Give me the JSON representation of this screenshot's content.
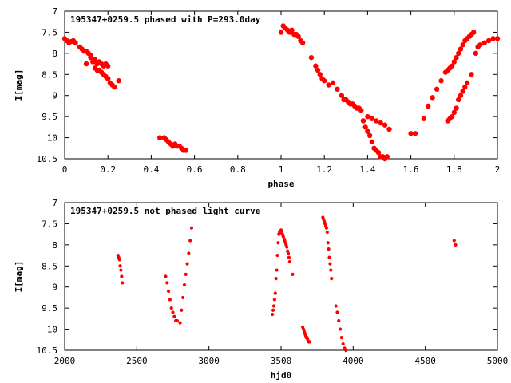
{
  "chart_data": [
    {
      "type": "scatter",
      "title": "195347+0259.5 phased with P=293.0day",
      "xlabel": "phase",
      "ylabel": "I[mag]",
      "xlim": [
        0,
        2
      ],
      "ylim": [
        7,
        10.5
      ],
      "y_inverted": true,
      "grid": false,
      "xticks": [
        0,
        0.2,
        0.4,
        0.6,
        0.8,
        1,
        1.2,
        1.4,
        1.6,
        1.8,
        2
      ],
      "xtick_labels": [
        "0",
        "0.2",
        "0.4",
        "0.6",
        "0.8",
        "1",
        "1.2",
        "1.4",
        "1.6",
        "1.8",
        "2"
      ],
      "yticks": [
        7,
        7.5,
        8,
        8.5,
        9,
        9.5,
        10,
        10.5
      ],
      "ytick_labels": [
        "7",
        "7.5",
        "8",
        "8.5",
        "9",
        "9.5",
        "10",
        "10.5"
      ],
      "marker_color": "#ff0000",
      "series": [
        {
          "x": [
            0.0,
            0.01,
            0.02,
            0.03,
            0.04,
            0.05,
            0.07,
            0.08,
            0.09,
            0.1,
            0.11,
            0.12,
            0.12,
            0.13,
            0.14,
            0.15,
            0.16,
            0.17,
            0.18,
            0.19,
            0.2,
            0.14,
            0.15,
            0.16,
            0.17,
            0.18,
            0.19,
            0.2,
            0.21,
            0.22,
            0.23,
            0.25,
            0.1,
            0.44,
            0.46,
            0.47,
            0.48,
            0.49,
            0.5,
            0.51,
            0.52,
            0.53,
            0.54,
            0.55,
            0.56,
            1.0,
            1.01,
            1.02,
            1.03,
            1.04,
            1.05,
            1.06,
            1.07,
            1.08,
            1.09,
            1.1,
            1.14,
            1.16,
            1.17,
            1.18,
            1.19,
            1.2,
            1.22,
            1.24,
            1.26,
            1.28,
            1.29,
            1.3,
            1.31,
            1.32,
            1.33,
            1.34,
            1.35,
            1.36,
            1.37,
            1.38,
            1.39,
            1.4,
            1.41,
            1.42,
            1.43,
            1.44,
            1.45,
            1.46,
            1.47,
            1.48,
            1.49,
            1.4,
            1.42,
            1.44,
            1.46,
            1.48,
            1.5,
            1.6,
            1.62,
            1.66,
            1.68,
            1.7,
            1.72,
            1.74,
            1.76,
            1.77,
            1.78,
            1.79,
            1.8,
            1.81,
            1.82,
            1.83,
            1.84,
            1.85,
            1.86,
            1.87,
            1.88,
            1.89,
            1.77,
            1.78,
            1.79,
            1.8,
            1.81,
            1.82,
            1.83,
            1.84,
            1.85,
            1.86,
            1.88,
            1.9,
            1.91,
            1.92,
            1.94,
            1.96,
            1.98,
            2.0
          ],
          "y": [
            7.65,
            7.7,
            7.75,
            7.72,
            7.7,
            7.75,
            7.85,
            7.9,
            7.95,
            7.95,
            8.0,
            8.05,
            8.1,
            8.2,
            8.15,
            8.25,
            8.2,
            8.25,
            8.3,
            8.25,
            8.3,
            8.35,
            8.4,
            8.4,
            8.45,
            8.5,
            8.55,
            8.6,
            8.7,
            8.75,
            8.8,
            8.65,
            8.25,
            10.0,
            10.0,
            10.05,
            10.1,
            10.15,
            10.2,
            10.15,
            10.2,
            10.2,
            10.25,
            10.3,
            10.3,
            7.5,
            7.35,
            7.4,
            7.45,
            7.5,
            7.45,
            7.55,
            7.55,
            7.6,
            7.7,
            7.75,
            8.1,
            8.3,
            8.4,
            8.5,
            8.6,
            8.65,
            8.75,
            8.7,
            8.85,
            9.0,
            9.1,
            9.1,
            9.15,
            9.2,
            9.2,
            9.25,
            9.3,
            9.3,
            9.35,
            9.6,
            9.75,
            9.85,
            9.95,
            10.1,
            10.25,
            10.3,
            10.35,
            10.45,
            10.45,
            10.5,
            10.45,
            9.5,
            9.55,
            9.6,
            9.65,
            9.7,
            9.8,
            9.9,
            9.9,
            9.55,
            9.25,
            9.05,
            8.85,
            8.65,
            8.45,
            8.4,
            8.35,
            8.3,
            8.2,
            8.1,
            8.0,
            7.9,
            7.8,
            7.7,
            7.65,
            7.6,
            7.55,
            7.5,
            9.6,
            9.55,
            9.5,
            9.4,
            9.3,
            9.1,
            9.0,
            8.9,
            8.8,
            8.7,
            8.5,
            8.0,
            7.85,
            7.8,
            7.75,
            7.7,
            7.65,
            7.65
          ]
        }
      ]
    },
    {
      "type": "scatter",
      "title": "195347+0259.5 not phased light curve",
      "xlabel": "hjd0",
      "ylabel": "I[mag]",
      "xlim": [
        2000,
        5000
      ],
      "ylim": [
        7,
        10.5
      ],
      "y_inverted": true,
      "grid": false,
      "xticks": [
        2000,
        2500,
        3000,
        3500,
        4000,
        4500,
        5000
      ],
      "xtick_labels": [
        "2000",
        "2500",
        "3000",
        "3500",
        "4000",
        "4500",
        "5000"
      ],
      "yticks": [
        7,
        7.5,
        8,
        8.5,
        9,
        9.5,
        10,
        10.5
      ],
      "ytick_labels": [
        "7",
        "7.5",
        "8",
        "8.5",
        "9",
        "9.5",
        "10",
        "10.5"
      ],
      "marker_color": "#ff0000",
      "series": [
        {
          "x": [
            2370,
            2375,
            2380,
            2385,
            2390,
            2395,
            2400,
            2700,
            2710,
            2720,
            2730,
            2740,
            2750,
            2760,
            2770,
            2780,
            2800,
            2810,
            2820,
            2830,
            2840,
            2850,
            2860,
            2870,
            2880,
            3440,
            3445,
            3450,
            3455,
            3460,
            3465,
            3470,
            3475,
            3480,
            3485,
            3490,
            3495,
            3500,
            3505,
            3510,
            3515,
            3520,
            3525,
            3530,
            3535,
            3540,
            3545,
            3550,
            3555,
            3560,
            3580,
            3650,
            3655,
            3660,
            3665,
            3670,
            3675,
            3680,
            3685,
            3690,
            3695,
            3700,
            3790,
            3795,
            3800,
            3805,
            3810,
            3815,
            3820,
            3825,
            3830,
            3835,
            3840,
            3845,
            3850,
            3880,
            3890,
            3900,
            3910,
            3920,
            3930,
            3940,
            3950,
            4700,
            4710
          ],
          "y": [
            8.25,
            8.3,
            8.35,
            8.5,
            8.6,
            8.75,
            8.9,
            8.75,
            8.9,
            9.1,
            9.3,
            9.5,
            9.6,
            9.7,
            9.8,
            9.8,
            9.85,
            9.55,
            9.25,
            8.95,
            8.7,
            8.45,
            8.2,
            7.9,
            7.6,
            9.65,
            9.55,
            9.45,
            9.3,
            9.15,
            8.8,
            8.6,
            8.25,
            7.95,
            7.75,
            7.7,
            7.7,
            7.65,
            7.7,
            7.75,
            7.8,
            7.85,
            7.9,
            7.95,
            8.0,
            8.05,
            8.15,
            8.2,
            8.3,
            8.4,
            8.7,
            9.95,
            10.0,
            10.05,
            10.1,
            10.15,
            10.2,
            10.2,
            10.25,
            10.3,
            10.3,
            10.3,
            7.35,
            7.4,
            7.45,
            7.5,
            7.55,
            7.6,
            7.7,
            7.95,
            8.1,
            8.3,
            8.45,
            8.6,
            8.8,
            9.45,
            9.6,
            9.8,
            10.0,
            10.2,
            10.35,
            10.45,
            10.5,
            7.9,
            8.0
          ]
        }
      ]
    }
  ]
}
